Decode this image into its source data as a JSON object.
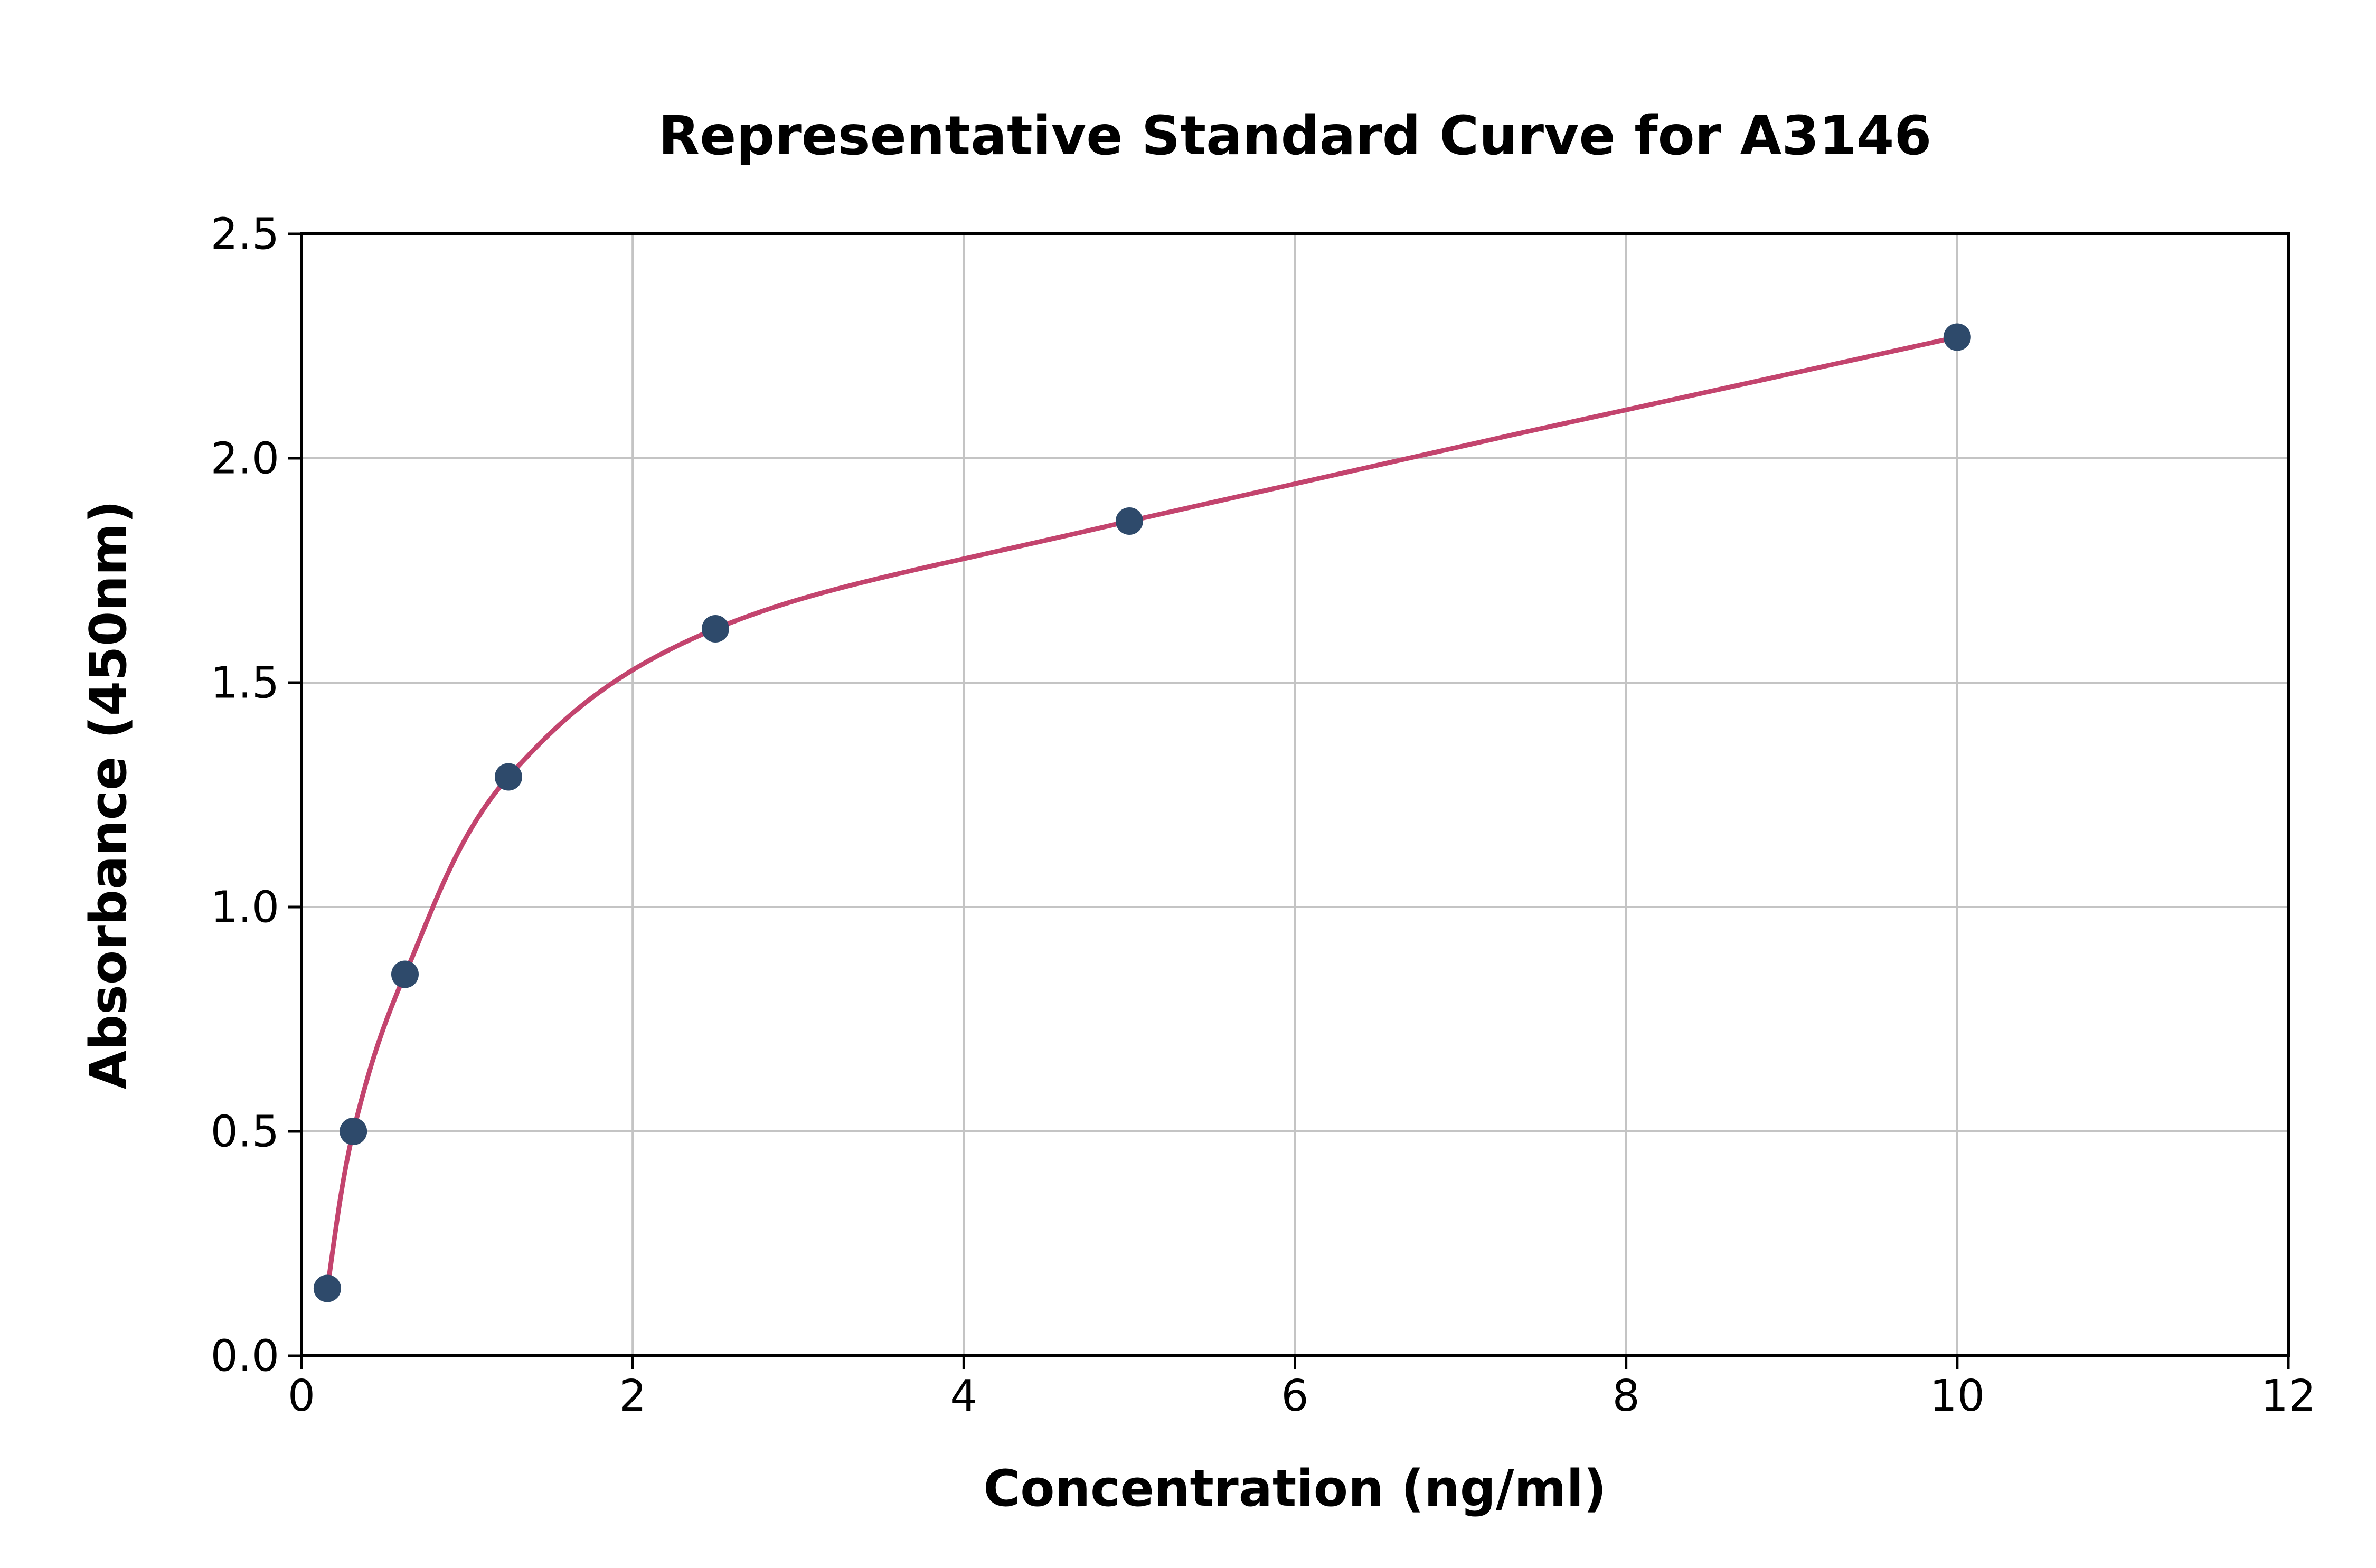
{
  "figure": {
    "background": "#ffffff"
  },
  "chart_data": {
    "type": "scatter",
    "title": "Representative Standard Curve for A3146",
    "xlabel": "Concentration (ng/ml)",
    "ylabel": "Absorbance (450nm)",
    "xlim": [
      0,
      12
    ],
    "ylim": [
      0,
      2.5
    ],
    "x_ticks": [
      "0",
      "2",
      "4",
      "6",
      "8",
      "10",
      "12"
    ],
    "x_tick_values": [
      0,
      2,
      4,
      6,
      8,
      10,
      12
    ],
    "y_ticks": [
      "0.0",
      "0.5",
      "1.0",
      "1.5",
      "2.0",
      "2.5"
    ],
    "y_tick_values": [
      0,
      0.5,
      1.0,
      1.5,
      2.0,
      2.5
    ],
    "grid": true,
    "legend": false,
    "points": [
      {
        "x": 0.156,
        "y": 0.15
      },
      {
        "x": 0.313,
        "y": 0.5
      },
      {
        "x": 0.625,
        "y": 0.85
      },
      {
        "x": 1.25,
        "y": 1.29
      },
      {
        "x": 2.5,
        "y": 1.62
      },
      {
        "x": 5,
        "y": 1.86
      },
      {
        "x": 10,
        "y": 2.27
      }
    ],
    "trendline": {
      "type": "fitted-smooth-curve",
      "x_start": 0.156,
      "x_end": 10
    },
    "colors": {
      "points": "#2e4a6b",
      "line": "#c3446e",
      "grid": "#c4c4c4",
      "axis": "#000000",
      "text": "#000000"
    }
  }
}
